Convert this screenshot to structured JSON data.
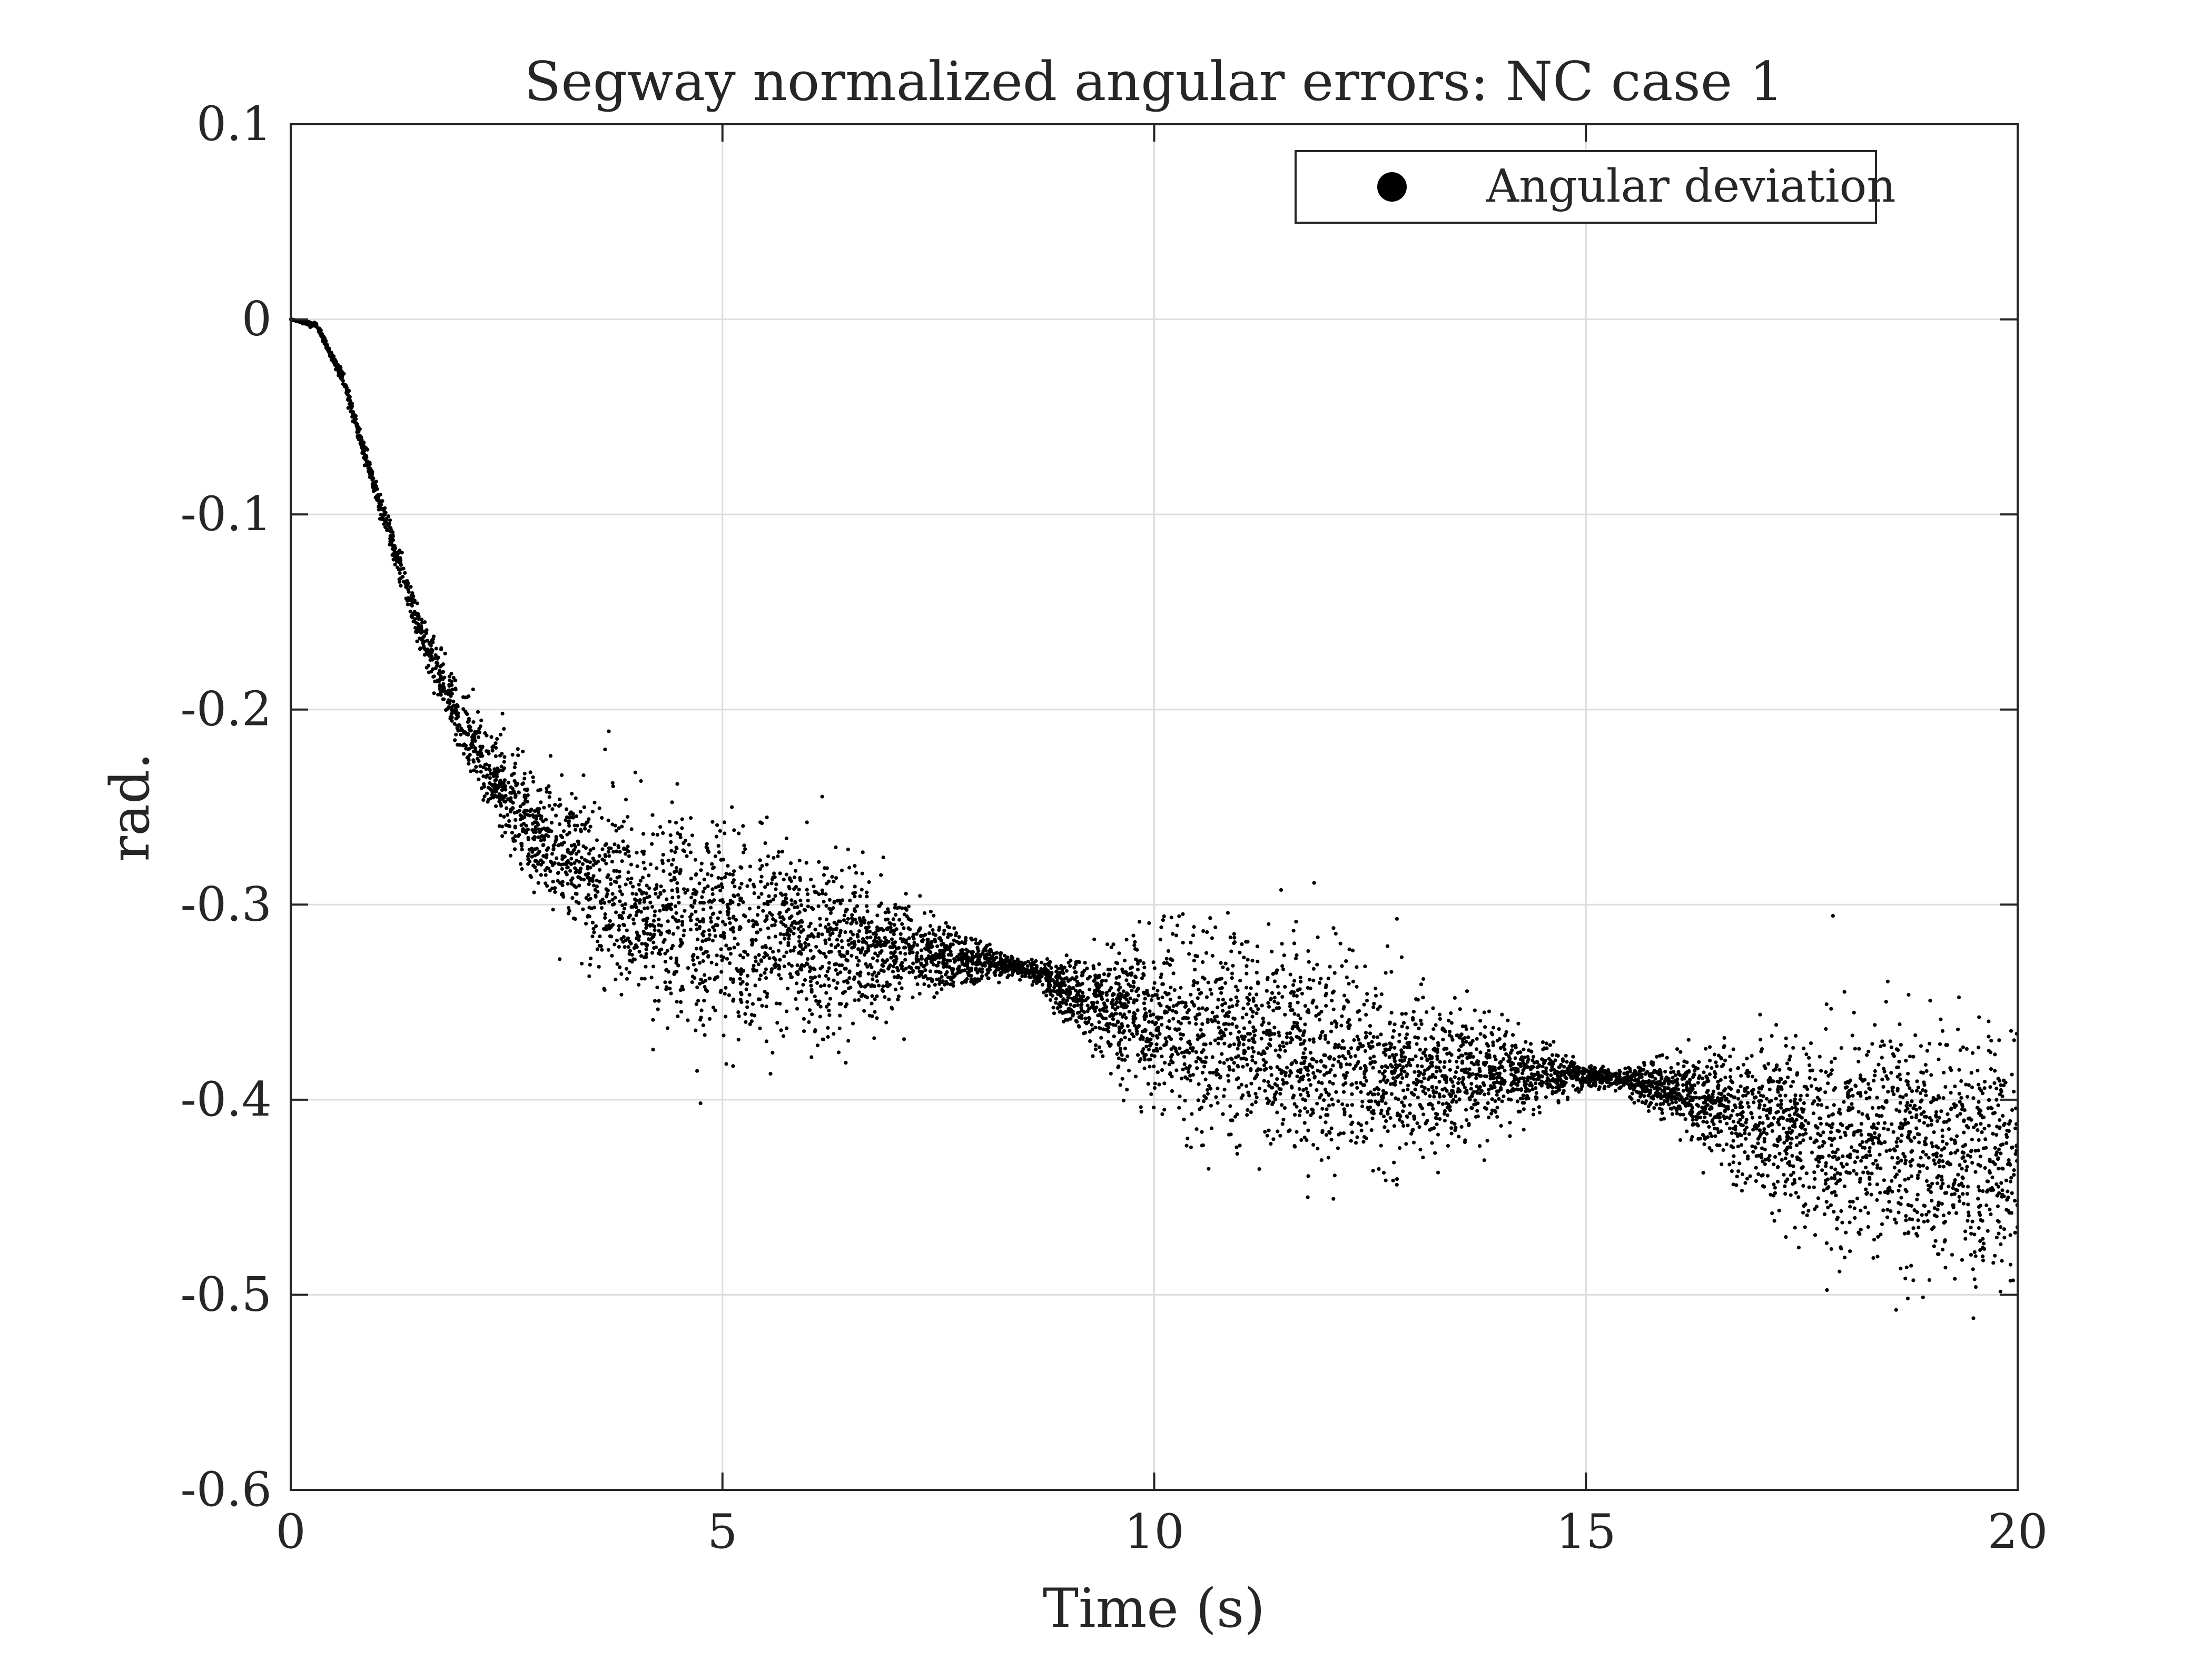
{
  "chart_data": {
    "type": "scatter",
    "title": "Segway normalized angular errors: NC case 1",
    "xlabel": "Time (s)",
    "ylabel": "rad.",
    "xlim": [
      0,
      20
    ],
    "ylim": [
      -0.6,
      0.1
    ],
    "xticks": [
      0,
      5,
      10,
      15,
      20
    ],
    "xtick_labels": [
      "0",
      "5",
      "10",
      "15",
      "20"
    ],
    "yticks": [
      0.1,
      0,
      -0.1,
      -0.2,
      -0.3,
      -0.4,
      -0.5,
      -0.6
    ],
    "ytick_labels": [
      "0.1",
      "0",
      "-0.1",
      "-0.2",
      "-0.3",
      "-0.4",
      "-0.5",
      "-0.6"
    ],
    "grid": true,
    "legend": {
      "position": "top-right",
      "entries": [
        "Angular deviation"
      ]
    },
    "series": [
      {
        "name": "Angular deviation",
        "color": "#000000",
        "marker": "dot",
        "points_per_time": 8,
        "mean_curve": {
          "x": [
            0,
            0.3,
            0.6,
            1.0,
            1.5,
            2.0,
            2.5,
            3.0,
            4.0,
            5.0,
            6.0,
            7.0,
            8.0,
            8.5,
            9.0,
            10.0,
            11.0,
            12.0,
            13.0,
            14.0,
            15.0,
            15.5,
            16.0,
            17.0,
            18.0,
            19.0,
            20.0
          ],
          "y": [
            0.0,
            -0.003,
            -0.03,
            -0.09,
            -0.16,
            -0.21,
            -0.245,
            -0.27,
            -0.3,
            -0.315,
            -0.32,
            -0.325,
            -0.33,
            -0.333,
            -0.345,
            -0.36,
            -0.37,
            -0.38,
            -0.385,
            -0.387,
            -0.388,
            -0.39,
            -0.395,
            -0.41,
            -0.42,
            -0.425,
            -0.43
          ]
        },
        "spread_curve": {
          "x": [
            0,
            0.5,
            1.0,
            1.5,
            2.0,
            3.0,
            4.0,
            5.0,
            6.0,
            7.0,
            8.0,
            8.5,
            9.0,
            10.0,
            11.0,
            12.0,
            13.0,
            14.0,
            15.0,
            15.3,
            15.6,
            16.0,
            17.0,
            18.0,
            19.0,
            20.0
          ],
          "y": [
            0.0,
            0.002,
            0.005,
            0.01,
            0.015,
            0.03,
            0.045,
            0.05,
            0.045,
            0.025,
            0.008,
            0.003,
            0.015,
            0.038,
            0.05,
            0.045,
            0.035,
            0.022,
            0.006,
            0.003,
            0.008,
            0.015,
            0.035,
            0.05,
            0.055,
            0.055
          ]
        }
      }
    ]
  }
}
